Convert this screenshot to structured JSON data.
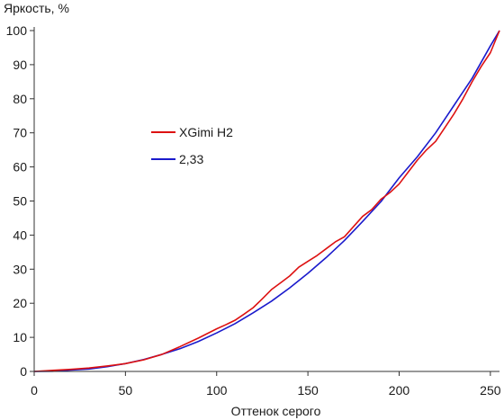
{
  "chart_data": {
    "type": "line",
    "title": "",
    "xlabel": "Оттенок серого",
    "ylabel": "Яркость, %",
    "xlim": [
      0,
      255
    ],
    "ylim": [
      0,
      100
    ],
    "xticks": [
      0,
      50,
      100,
      150,
      200,
      250
    ],
    "yticks": [
      0,
      10,
      20,
      30,
      40,
      50,
      60,
      70,
      80,
      90,
      100
    ],
    "grid": false,
    "legend_position": "center-left",
    "series": [
      {
        "name": "XGimi H2",
        "color": "#dd1111",
        "x": [
          0,
          10,
          20,
          30,
          40,
          50,
          60,
          70,
          80,
          90,
          100,
          105,
          110,
          115,
          120,
          125,
          130,
          135,
          140,
          145,
          150,
          155,
          160,
          165,
          170,
          175,
          180,
          185,
          190,
          195,
          200,
          205,
          210,
          215,
          220,
          225,
          230,
          235,
          240,
          245,
          250,
          255
        ],
        "y": [
          0,
          0.3,
          0.6,
          1.0,
          1.6,
          2.3,
          3.4,
          5.0,
          7.3,
          9.8,
          12.5,
          13.7,
          15.0,
          16.8,
          18.7,
          21.3,
          24.0,
          26.0,
          28.0,
          30.6,
          32.3,
          34.0,
          36.0,
          38.0,
          39.5,
          42.5,
          45.5,
          47.5,
          50.5,
          52.5,
          55.0,
          58.5,
          62.0,
          65.0,
          67.5,
          71.5,
          75.5,
          80.0,
          85.0,
          89.5,
          93.5,
          100
        ]
      },
      {
        "name": "2,33",
        "color": "#1a1acc",
        "gamma": 2.33,
        "x": [
          0,
          10,
          20,
          30,
          40,
          50,
          60,
          70,
          80,
          90,
          100,
          110,
          120,
          130,
          140,
          150,
          160,
          170,
          180,
          190,
          200,
          210,
          220,
          230,
          240,
          250,
          255
        ],
        "y": [
          0,
          0.05,
          0.4,
          0.7,
          1.4,
          2.3,
          3.5,
          5.0,
          6.7,
          8.8,
          11.3,
          14.0,
          17.2,
          20.6,
          24.5,
          28.8,
          33.4,
          38.4,
          44.0,
          49.8,
          56.8,
          63.0,
          70.0,
          78.0,
          86.0,
          95.5,
          100
        ]
      }
    ]
  }
}
